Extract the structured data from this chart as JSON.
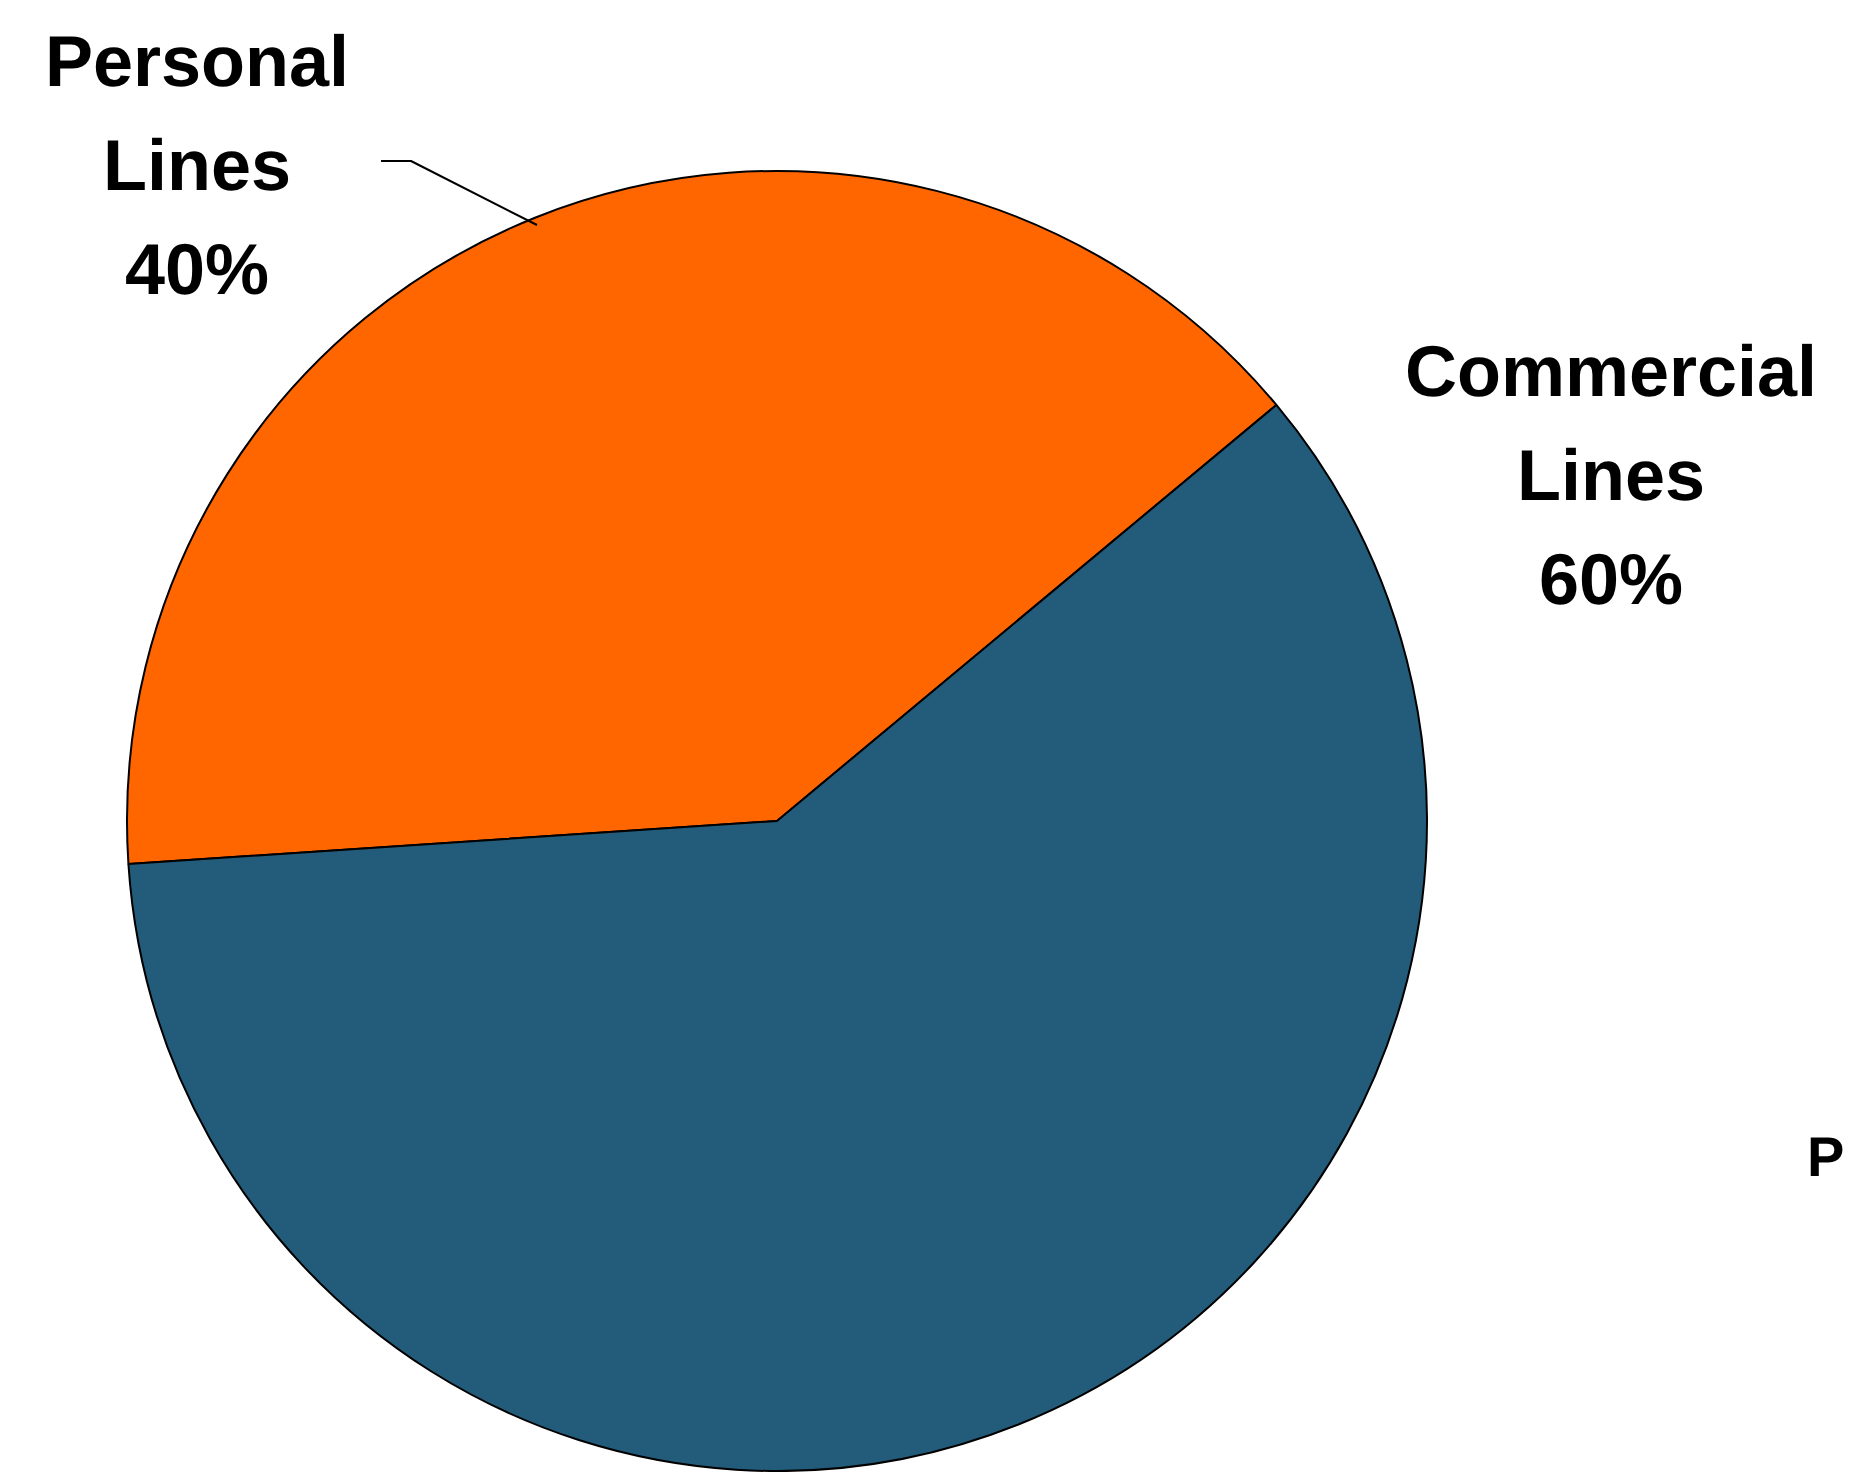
{
  "chart_data": {
    "type": "pie",
    "categories": [
      "Personal Lines",
      "Commercial Lines"
    ],
    "values": [
      40,
      60
    ],
    "colors": [
      "#ff6600",
      "#235c7a"
    ],
    "value_labels": [
      "40%",
      "60%"
    ],
    "annotations": [
      "P"
    ]
  }
}
